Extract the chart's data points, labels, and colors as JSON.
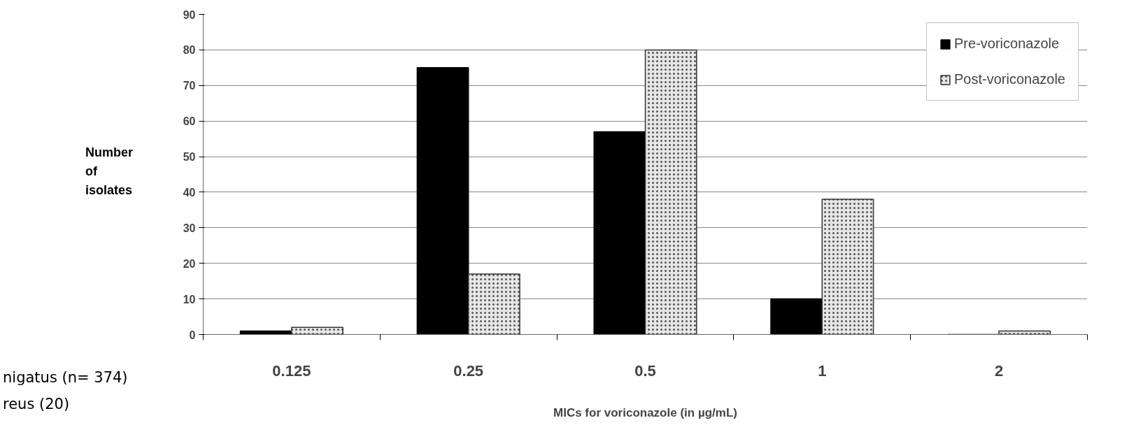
{
  "chart_data": {
    "type": "bar",
    "xlabel": "MICs for voriconazole (in µg/mL)",
    "ylabel": "Number of isolates",
    "categories": [
      "0.125",
      "0.25",
      "0.5",
      "1",
      "2"
    ],
    "series": [
      {
        "name": "Pre-voriconazole",
        "color": "#000000",
        "values": [
          1,
          75,
          57,
          10,
          0
        ]
      },
      {
        "name": "Post-voriconazole",
        "color": "#e6e6e6",
        "values": [
          2,
          17,
          80,
          38,
          1
        ]
      }
    ],
    "ylim": [
      0,
      90
    ],
    "yticks": [
      0,
      10,
      20,
      30,
      40,
      50,
      60,
      70,
      80,
      90
    ],
    "grid": "y",
    "legend": "top right",
    "annotations": [
      "nigatus (n= 374)",
      "reus (20)"
    ]
  }
}
